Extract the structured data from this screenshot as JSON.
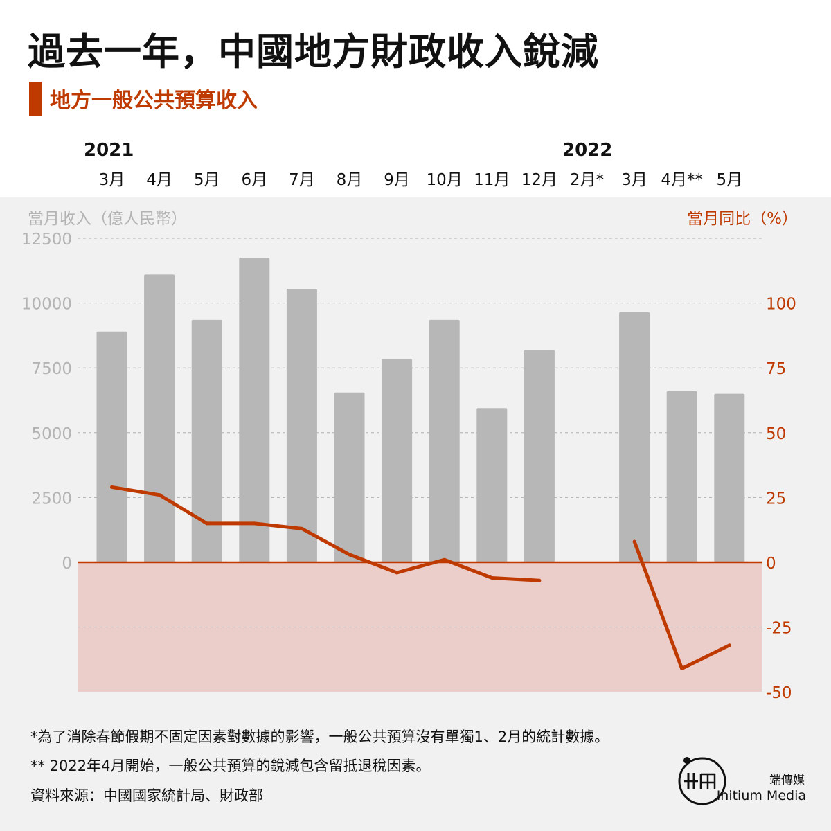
{
  "title": "過去一年，中國地方財政收入銳減",
  "subtitle": "地方一般公共預算收入",
  "years": [
    "2021",
    "2022"
  ],
  "axis": {
    "left_title": "當月收入（億人民幣）",
    "right_title": "當月同比（%）",
    "left_ticks": [
      "12500",
      "10000",
      "7500",
      "5000",
      "2500",
      "0"
    ],
    "right_ticks": [
      "100",
      "75",
      "50",
      "25",
      "0",
      "-25",
      "-50"
    ]
  },
  "colors": {
    "bar": "#b7b7b7",
    "line": "#bf3a00",
    "negative_zone": "#ebcdca",
    "grid": "#b0b0b0"
  },
  "chart_data": {
    "type": "bar",
    "categories": [
      "3月",
      "4月",
      "5月",
      "6月",
      "7月",
      "8月",
      "9月",
      "10月",
      "11月",
      "12月",
      "2月*",
      "3月",
      "4月**",
      "5月"
    ],
    "series": [
      {
        "name": "當月收入（億人民幣）",
        "type": "bar",
        "axis": "left",
        "values": [
          8900,
          11100,
          9350,
          11750,
          10550,
          6550,
          7850,
          9350,
          5950,
          8200,
          null,
          9650,
          6600,
          6500
        ]
      },
      {
        "name": "當月同比（%）",
        "type": "line",
        "axis": "right",
        "values": [
          29,
          26,
          15,
          15,
          13,
          3,
          -4,
          1,
          -6,
          -7,
          null,
          8,
          -41,
          -32
        ]
      }
    ],
    "left_ylim": [
      -5000,
      12500
    ],
    "right_ylim": [
      -50,
      125
    ],
    "grid": true
  },
  "footnotes": [
    "*為了消除春節假期不固定因素對數據的影響，一般公共預算沒有單獨1、2月的統計數據。",
    "** 2022年4月開始，一般公共預算的銳減包含留抵退稅因素。",
    "資料來源：中國國家統計局、財政部"
  ],
  "brand": {
    "cn": "端傳媒",
    "en": "Initium Media",
    "logo_icon": "initium-logo-icon"
  }
}
